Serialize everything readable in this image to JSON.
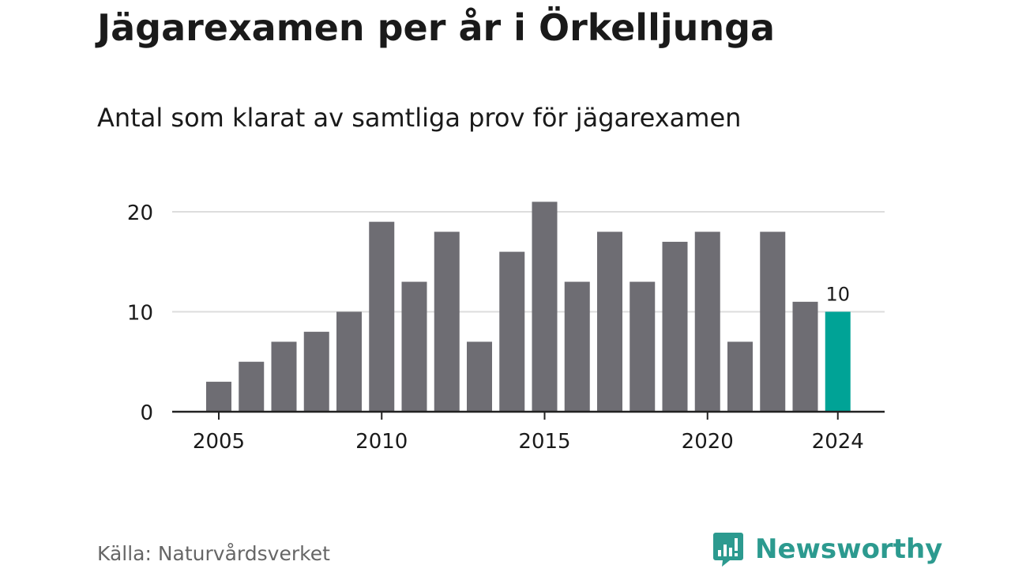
{
  "title": "Jägarexamen per år i Örkelljunga",
  "subtitle": "Antal som klarat av samtliga prov för jägarexamen",
  "source": "Källa: Naturvårdsverket",
  "brand": {
    "name": "Newsworthy",
    "icon": "chart-bubble-icon",
    "color": "#2c9a8f"
  },
  "colors": {
    "bar": "#6e6d73",
    "highlight": "#00a396",
    "grid": "#dddddd",
    "axis": "#222222",
    "text": "#1a1a1a"
  },
  "chart_data": {
    "type": "bar",
    "x": [
      2005,
      2006,
      2007,
      2008,
      2009,
      2010,
      2011,
      2012,
      2013,
      2014,
      2015,
      2016,
      2017,
      2018,
      2019,
      2020,
      2021,
      2022,
      2023,
      2024
    ],
    "values": [
      3,
      5,
      7,
      8,
      10,
      19,
      13,
      18,
      7,
      16,
      21,
      13,
      18,
      13,
      17,
      18,
      7,
      18,
      11,
      10
    ],
    "ylim": [
      0,
      21
    ],
    "yticks": [
      0,
      10,
      20
    ],
    "xticks": [
      2005,
      2010,
      2015,
      2020,
      2024
    ],
    "highlight": {
      "x": 2024,
      "label": "10"
    },
    "grid": true
  }
}
